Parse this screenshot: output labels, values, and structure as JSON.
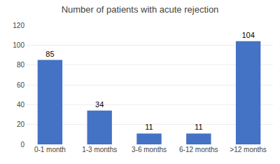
{
  "chart_data": {
    "type": "bar",
    "title": "Number of patients with acute rejection",
    "categories": [
      "0-1 month",
      "1-3 months",
      "3-6 months",
      "6-12 months",
      ">12 months"
    ],
    "values": [
      85,
      34,
      11,
      11,
      104
    ],
    "color": "#4472C4",
    "ylim": [
      0,
      120
    ],
    "yticks": [
      0,
      20,
      40,
      60,
      80,
      100,
      120
    ],
    "grid": true,
    "data_labels": true
  }
}
